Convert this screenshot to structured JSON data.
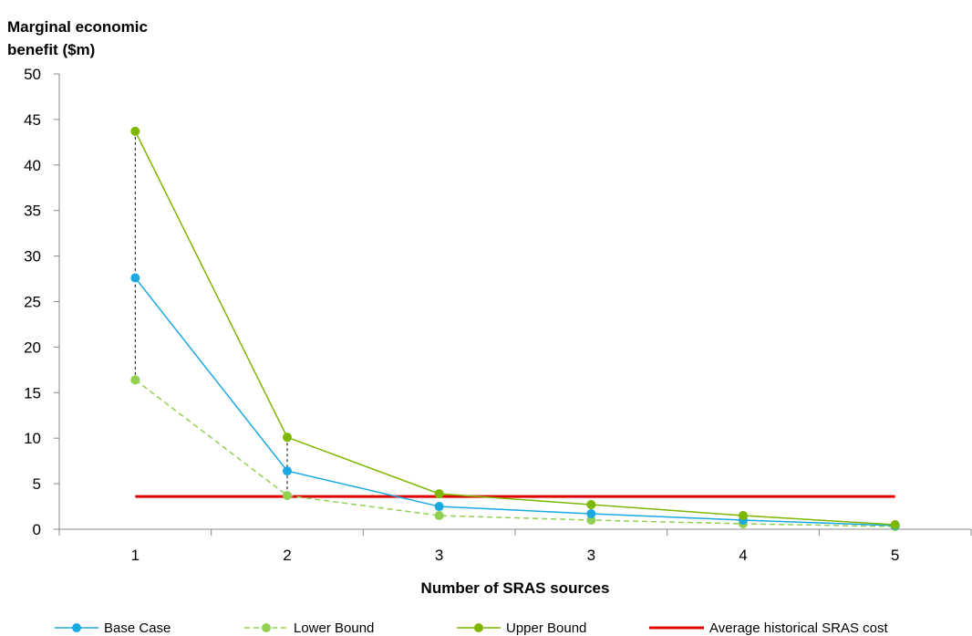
{
  "chart_data": {
    "type": "line",
    "title": "",
    "ylabel_line1": "Marginal economic",
    "ylabel_line2": "benefit ($m)",
    "xlabel": "Number of SRAS sources",
    "ylim": [
      0,
      50
    ],
    "yticks": [
      0,
      5,
      10,
      15,
      20,
      25,
      30,
      35,
      40,
      45,
      50
    ],
    "categories": [
      "1",
      "2",
      "3",
      "3",
      "4",
      "5"
    ],
    "grid": false,
    "legend_position": "bottom",
    "series": [
      {
        "name": "Base Case",
        "values": [
          27.6,
          6.4,
          2.5,
          1.7,
          1.0,
          0.4
        ],
        "color": "#19A9E0",
        "style": "solid",
        "marker": "circle"
      },
      {
        "name": "Lower Bound",
        "values": [
          16.4,
          3.7,
          1.5,
          1.0,
          0.6,
          0.3
        ],
        "color": "#92D050",
        "style": "dashed",
        "marker": "circle"
      },
      {
        "name": "Upper Bound",
        "values": [
          43.7,
          10.1,
          3.9,
          2.7,
          1.5,
          0.5
        ],
        "color": "#7DB700",
        "style": "solid",
        "marker": "circle"
      },
      {
        "name": "Average historical SRAS cost",
        "values": [
          3.6,
          3.6,
          3.6,
          3.6,
          3.6,
          3.6
        ],
        "color": "#E00000",
        "style": "thick",
        "marker": "none"
      }
    ],
    "range_lines": [
      {
        "category_index": 0,
        "from": 16.4,
        "to": 43.7
      },
      {
        "category_index": 1,
        "from": 3.7,
        "to": 10.1
      }
    ]
  }
}
